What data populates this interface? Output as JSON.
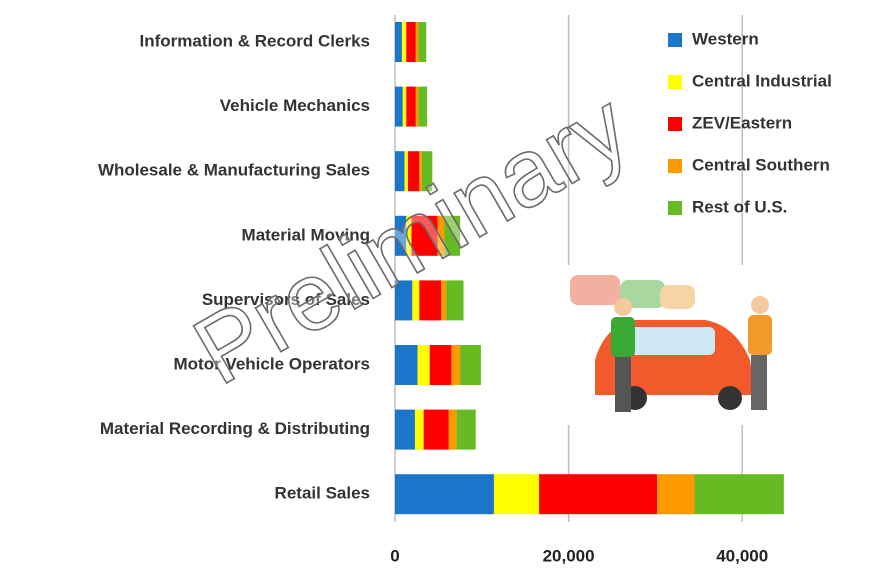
{
  "chart_data": {
    "type": "stacked-bar-horizontal",
    "categories": [
      "Information & Record Clerks",
      "Vehicle Mechanics",
      "Wholesale & Manufacturing Sales",
      "Material Moving",
      "Supervisors of Sales",
      "Motor Vehicle Operators",
      "Material Recording & Distributing",
      "Retail Sales"
    ],
    "series": [
      {
        "name": "Western",
        "color": "#1b75c9",
        "values": [
          800,
          900,
          1100,
          1300,
          2000,
          2600,
          2300,
          11400
        ]
      },
      {
        "name": "Central Industrial",
        "color": "#ffff00",
        "values": [
          500,
          400,
          400,
          600,
          800,
          1400,
          1000,
          5200
        ]
      },
      {
        "name": "ZEV/Eastern",
        "color": "#ff0000",
        "values": [
          1100,
          1100,
          1300,
          3000,
          2500,
          2500,
          2900,
          13600
        ]
      },
      {
        "name": "Central Southern",
        "color": "#ff9900",
        "values": [
          300,
          300,
          300,
          800,
          600,
          1000,
          900,
          4300
        ]
      },
      {
        "name": "Rest of U.S.",
        "color": "#66bb22",
        "values": [
          900,
          1000,
          1200,
          1800,
          2000,
          2400,
          2200,
          10300
        ]
      }
    ],
    "xlim": [
      0,
      50000
    ],
    "xticks": [
      0,
      {
        "value": 20000,
        "label": "20,000"
      },
      {
        "value": 40000,
        "label": "40,000"
      }
    ],
    "grid": true,
    "legend": "upper-right",
    "annotation": "Preliminary"
  }
}
